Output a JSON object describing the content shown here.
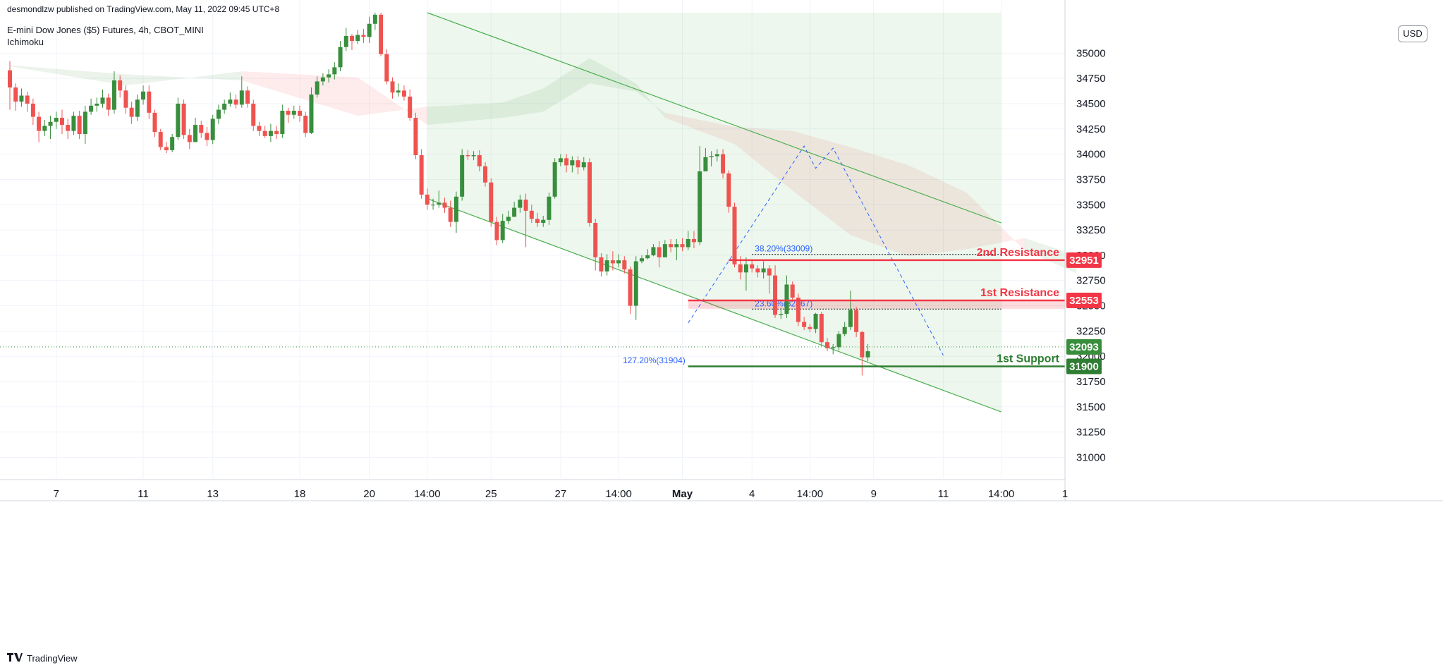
{
  "header": {
    "publisher": "desmondlzw published on TradingView.com, May 11, 2022 09:45 UTC+8",
    "symbol": "E-mini Dow Jones ($5) Futures, 4h, CBOT_MINI",
    "indicator": "Ichimoku"
  },
  "currency_button": "USD",
  "footer": {
    "brand": "TradingView",
    "logo_icon": "tradingview-logo-icon"
  },
  "colors": {
    "bull": "#388e3c",
    "bear": "#ef5350",
    "resistance": "#f23645",
    "support": "#2e7d32",
    "channel_fill": "#e8f5e9",
    "fib": "#2962ff"
  },
  "chart_data": {
    "type": "candlestick",
    "instrument": "E-mini Dow Jones ($5) Futures",
    "timeframe": "4h",
    "ylim": [
      30850,
      35400
    ],
    "y_ticks": [
      31000,
      31250,
      31500,
      31750,
      32000,
      32250,
      32500,
      32750,
      33000,
      33250,
      33500,
      33750,
      34000,
      34250,
      34500,
      34750,
      35000
    ],
    "x_ticks": [
      {
        "label": "7",
        "bar": 8
      },
      {
        "label": "11",
        "bar": 23
      },
      {
        "label": "13",
        "bar": 35
      },
      {
        "label": "18",
        "bar": 50
      },
      {
        "label": "20",
        "bar": 62
      },
      {
        "label": "14:00",
        "bar": 72
      },
      {
        "label": "25",
        "bar": 83
      },
      {
        "label": "27",
        "bar": 95
      },
      {
        "label": "14:00",
        "bar": 105
      },
      {
        "label": "May",
        "bar": 116
      },
      {
        "label": "4",
        "bar": 128
      },
      {
        "label": "14:00",
        "bar": 138
      },
      {
        "label": "9",
        "bar": 149
      },
      {
        "label": "11",
        "bar": 161
      },
      {
        "label": "14:00",
        "bar": 171
      },
      {
        "label": "1",
        "bar": 182
      }
    ],
    "candles": [
      [
        34830,
        34660,
        34920,
        34440
      ],
      [
        34660,
        34520,
        34700,
        34430
      ],
      [
        34520,
        34580,
        34650,
        34470
      ],
      [
        34580,
        34500,
        34620,
        34420
      ],
      [
        34500,
        34370,
        34550,
        34290
      ],
      [
        34370,
        34230,
        34420,
        34120
      ],
      [
        34230,
        34280,
        34340,
        34180
      ],
      [
        34280,
        34320,
        34380,
        34150
      ],
      [
        34320,
        34360,
        34420,
        34250
      ],
      [
        34360,
        34290,
        34440,
        34200
      ],
      [
        34290,
        34230,
        34350,
        34150
      ],
      [
        34230,
        34380,
        34420,
        34190
      ],
      [
        34380,
        34200,
        34430,
        34150
      ],
      [
        34200,
        34420,
        34480,
        34100
      ],
      [
        34420,
        34480,
        34550,
        34390
      ],
      [
        34480,
        34500,
        34560,
        34420
      ],
      [
        34500,
        34560,
        34640,
        34460
      ],
      [
        34560,
        34440,
        34600,
        34380
      ],
      [
        34440,
        34730,
        34820,
        34400
      ],
      [
        34730,
        34630,
        34780,
        34560
      ],
      [
        34630,
        34460,
        34680,
        34400
      ],
      [
        34460,
        34370,
        34520,
        34300
      ],
      [
        34370,
        34540,
        34590,
        34330
      ],
      [
        34540,
        34620,
        34680,
        34490
      ],
      [
        34620,
        34410,
        34680,
        34350
      ],
      [
        34410,
        34220,
        34440,
        34170
      ],
      [
        34220,
        34070,
        34250,
        34040
      ],
      [
        34070,
        34040,
        34120,
        34010
      ],
      [
        34040,
        34170,
        34200,
        34020
      ],
      [
        34170,
        34500,
        34560,
        34140
      ],
      [
        34500,
        34190,
        34540,
        34150
      ],
      [
        34190,
        34120,
        34250,
        34050
      ],
      [
        34120,
        34290,
        34360,
        34220
      ],
      [
        34290,
        34210,
        34330,
        34160
      ],
      [
        34210,
        34140,
        34270,
        34080
      ],
      [
        34140,
        34350,
        34390,
        34100
      ],
      [
        34350,
        34440,
        34490,
        34300
      ],
      [
        34440,
        34500,
        34540,
        34400
      ],
      [
        34500,
        34540,
        34610,
        34470
      ],
      [
        34540,
        34490,
        34590,
        34450
      ],
      [
        34490,
        34630,
        34770,
        34460
      ],
      [
        34630,
        34500,
        34670,
        34460
      ],
      [
        34500,
        34280,
        34540,
        34230
      ],
      [
        34280,
        34230,
        34320,
        34180
      ],
      [
        34230,
        34180,
        34280,
        34160
      ],
      [
        34180,
        34230,
        34300,
        34120
      ],
      [
        34230,
        34200,
        34280,
        34150
      ],
      [
        34200,
        34430,
        34490,
        34160
      ],
      [
        34430,
        34390,
        34460,
        34310
      ],
      [
        34390,
        34430,
        34480,
        34350
      ],
      [
        34430,
        34380,
        34480,
        34320
      ],
      [
        34380,
        34210,
        34420,
        34170
      ],
      [
        34210,
        34590,
        34660,
        34200
      ],
      [
        34590,
        34720,
        34770,
        34560
      ],
      [
        34720,
        34760,
        34800,
        34680
      ],
      [
        34760,
        34790,
        34840,
        34710
      ],
      [
        34790,
        34860,
        34910,
        34740
      ],
      [
        34860,
        35060,
        35120,
        34820
      ],
      [
        35060,
        35170,
        35250,
        35020
      ],
      [
        35170,
        35120,
        35190,
        35030
      ],
      [
        35120,
        35180,
        35230,
        35090
      ],
      [
        35180,
        35160,
        35240,
        35100
      ],
      [
        35160,
        35290,
        35360,
        35100
      ],
      [
        35290,
        35380,
        35400,
        35230
      ],
      [
        35380,
        34990,
        35400,
        34970
      ],
      [
        34990,
        34720,
        35040,
        34690
      ],
      [
        34720,
        34610,
        34760,
        34550
      ],
      [
        34610,
        34630,
        34700,
        34570
      ],
      [
        34630,
        34570,
        34680,
        34530
      ],
      [
        34570,
        34360,
        34640,
        34330
      ],
      [
        34360,
        33990,
        34410,
        33950
      ],
      [
        33990,
        33600,
        34050,
        33560
      ],
      [
        33600,
        33500,
        33660,
        33450
      ],
      [
        33500,
        33500,
        33560,
        33450
      ],
      [
        33500,
        33520,
        33640,
        33470
      ],
      [
        33520,
        33470,
        33570,
        33420
      ],
      [
        33470,
        33330,
        33540,
        33280
      ],
      [
        33330,
        33580,
        33630,
        33220
      ],
      [
        33580,
        33990,
        34050,
        33540
      ],
      [
        33990,
        33980,
        34040,
        33940
      ],
      [
        33980,
        33990,
        34030,
        33940
      ],
      [
        33990,
        33880,
        34040,
        33830
      ],
      [
        33880,
        33720,
        33920,
        33680
      ],
      [
        33720,
        33330,
        33760,
        33280
      ],
      [
        33330,
        33150,
        33380,
        33100
      ],
      [
        33150,
        33340,
        33410,
        33120
      ],
      [
        33340,
        33380,
        33440,
        33310
      ],
      [
        33380,
        33470,
        33530,
        33430
      ],
      [
        33470,
        33550,
        33600,
        33420
      ],
      [
        33550,
        33440,
        33610,
        33080
      ],
      [
        33440,
        33360,
        33500,
        33320
      ],
      [
        33360,
        33320,
        33420,
        33280
      ],
      [
        33320,
        33350,
        33390,
        33280
      ],
      [
        33350,
        33580,
        33620,
        33300
      ],
      [
        33580,
        33920,
        33960,
        33560
      ],
      [
        33920,
        33960,
        34000,
        33880
      ],
      [
        33960,
        33890,
        34000,
        33820
      ],
      [
        33890,
        33940,
        33980,
        33820
      ],
      [
        33940,
        33870,
        33980,
        33800
      ],
      [
        33870,
        33920,
        33970,
        33840
      ],
      [
        33920,
        33320,
        33960,
        33280
      ],
      [
        33320,
        32980,
        33360,
        32850
      ],
      [
        32980,
        32840,
        33020,
        32790
      ],
      [
        32840,
        32950,
        33010,
        32800
      ],
      [
        32950,
        32920,
        33040,
        32850
      ],
      [
        32920,
        32950,
        33010,
        32880
      ],
      [
        32950,
        32860,
        32990,
        32820
      ],
      [
        32860,
        32500,
        32890,
        32420
      ],
      [
        32500,
        32940,
        32990,
        32360
      ],
      [
        32940,
        32970,
        33000,
        32920
      ],
      [
        32970,
        33000,
        33060,
        32960
      ],
      [
        33000,
        33080,
        33110,
        32990
      ],
      [
        33080,
        32980,
        33140,
        32880
      ],
      [
        32980,
        33110,
        33150,
        32980
      ],
      [
        33110,
        33080,
        33160,
        33030
      ],
      [
        33080,
        33110,
        33160,
        32950
      ],
      [
        33110,
        33080,
        33170,
        33040
      ],
      [
        33080,
        33160,
        33240,
        33050
      ],
      [
        33160,
        33130,
        33240,
        33070
      ],
      [
        33130,
        33830,
        34080,
        33100
      ],
      [
        33830,
        33970,
        34060,
        33940
      ],
      [
        33970,
        33980,
        34030,
        33880
      ],
      [
        33980,
        34000,
        34050,
        33930
      ],
      [
        34000,
        33810,
        34050,
        33760
      ],
      [
        33810,
        33480,
        33840,
        33420
      ],
      [
        33480,
        32910,
        33520,
        32880
      ],
      [
        32910,
        32830,
        32990,
        32760
      ],
      [
        32830,
        32910,
        32980,
        32650
      ],
      [
        32910,
        32870,
        32960,
        32830
      ],
      [
        32870,
        32830,
        32900,
        32780
      ],
      [
        32830,
        32870,
        32940,
        32770
      ],
      [
        32870,
        32800,
        32900,
        32620
      ],
      [
        32800,
        32410,
        32900,
        32380
      ],
      [
        32410,
        32420,
        32480,
        32370
      ],
      [
        32420,
        32710,
        32800,
        32380
      ],
      [
        32710,
        32580,
        32740,
        32540
      ],
      [
        32580,
        32340,
        32620,
        32300
      ],
      [
        32340,
        32290,
        32390,
        32260
      ],
      [
        32290,
        32270,
        32320,
        32240
      ],
      [
        32270,
        32420,
        32430,
        32230
      ],
      [
        32420,
        32140,
        32440,
        32100
      ],
      [
        32140,
        32080,
        32180,
        32050
      ],
      [
        32080,
        32090,
        32120,
        32020
      ],
      [
        32090,
        32220,
        32250,
        32060
      ],
      [
        32220,
        32290,
        32340,
        32200
      ],
      [
        32290,
        32460,
        32650,
        32260
      ],
      [
        32460,
        32240,
        32490,
        32190
      ],
      [
        32240,
        31990,
        32250,
        31810
      ],
      [
        31990,
        32050,
        32120,
        31950
      ]
    ],
    "channel": {
      "upper": [
        {
          "bar": 72,
          "price": 35400
        },
        {
          "bar": 171,
          "price": 33320
        }
      ],
      "lower": [
        {
          "bar": 72,
          "price": 33560
        },
        {
          "bar": 171,
          "price": 31450
        }
      ],
      "fill_end_bar": 171
    },
    "ichimoku_cloud": [
      {
        "bar": 0,
        "a": 34880,
        "b": 34870
      },
      {
        "bar": 20,
        "a": 34790,
        "b": 34680
      },
      {
        "bar": 40,
        "a": 34730,
        "b": 34820
      },
      {
        "bar": 60,
        "a": 34380,
        "b": 34760
      },
      {
        "bar": 72,
        "a": 34470,
        "b": 34290
      },
      {
        "bar": 85,
        "a": 34510,
        "b": 34360
      },
      {
        "bar": 92,
        "a": 34650,
        "b": 34420
      },
      {
        "bar": 100,
        "a": 34950,
        "b": 34700
      },
      {
        "bar": 108,
        "a": 34700,
        "b": 34620
      },
      {
        "bar": 113,
        "a": 34360,
        "b": 34410
      },
      {
        "bar": 125,
        "a": 34100,
        "b": 34270
      },
      {
        "bar": 135,
        "a": 33640,
        "b": 34230
      },
      {
        "bar": 145,
        "a": 33200,
        "b": 34070
      },
      {
        "bar": 155,
        "a": 32990,
        "b": 33890
      },
      {
        "bar": 165,
        "a": 33060,
        "b": 33620
      },
      {
        "bar": 175,
        "a": 33170,
        "b": 33050
      },
      {
        "bar": 184,
        "a": 33000,
        "b": 32820
      }
    ],
    "levels": [
      {
        "label": "2nd Resistance",
        "price": 32951,
        "price_label": "32951",
        "start_bar": 124,
        "color": "#f23645"
      },
      {
        "label": "1st Resistance",
        "price": 32553,
        "price_label": "32553",
        "start_bar": 117,
        "color": "#f23645"
      },
      {
        "label": "1st Support",
        "price": 31900,
        "price_label": "31900",
        "start_bar": 117,
        "color": "#2e7d32"
      }
    ],
    "resistance_zone": {
      "from": 32470,
      "to": 32553,
      "start_bar": 117
    },
    "last_price": {
      "price": 32093,
      "label": "32093"
    },
    "fib_levels": [
      {
        "label": "38.20%(33009)",
        "price": 33009,
        "start_bar": 128,
        "end_bar": 171
      },
      {
        "label": "23.60%(32467)",
        "price": 32467,
        "start_bar": 128,
        "end_bar": 171
      },
      {
        "label": "127.20%(31904)",
        "price": 31904,
        "start_bar": 117,
        "end_bar": 171
      }
    ],
    "fib_path": [
      {
        "bar": 117,
        "price": 32330
      },
      {
        "bar": 137,
        "price": 34080
      },
      {
        "bar": 139,
        "price": 33860
      },
      {
        "bar": 142,
        "price": 34060
      },
      {
        "bar": 161,
        "price": 32010
      }
    ]
  }
}
